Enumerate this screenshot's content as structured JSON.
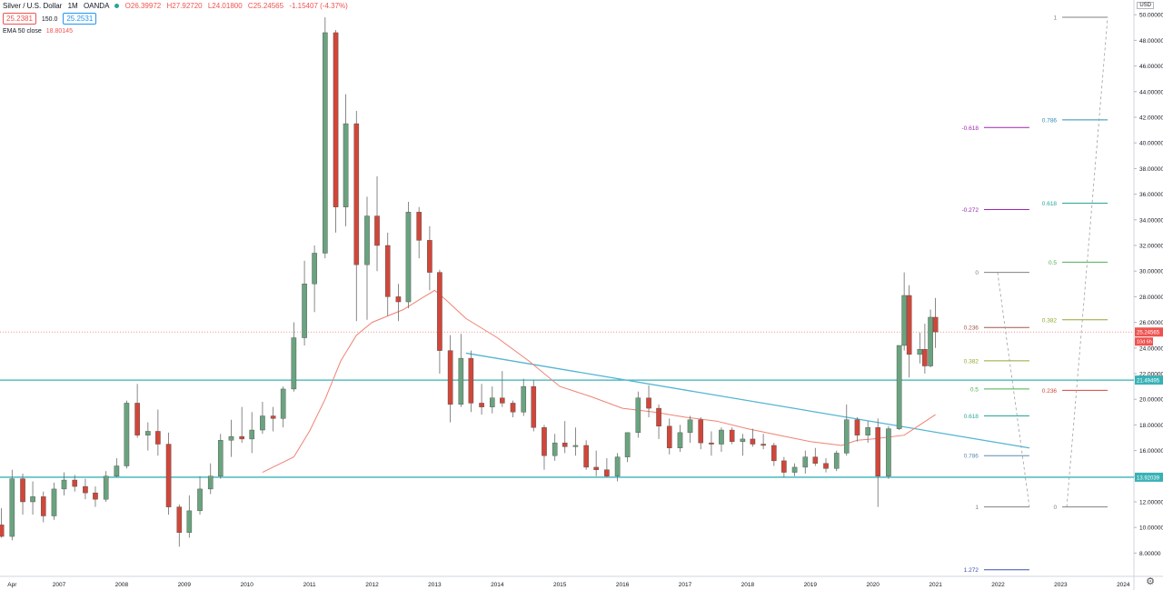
{
  "header": {
    "symbol": "Silver / U.S. Dollar",
    "interval": "1M",
    "source": "OANDA",
    "open": "O26.39972",
    "high": "H27.92720",
    "low": "L24.01800",
    "close": "C25.24565",
    "change": "-1.15407 (-4.37%)",
    "sell_price": "25.2381",
    "spread": "150.0",
    "buy_price": "25.2531",
    "indicator": "EMA 50 close",
    "indicator_value": "18.80145",
    "currency": "USD"
  },
  "colors": {
    "up": "#6aa37f",
    "down": "#d0473a",
    "ema": "#f08272",
    "hline": "#38b2b6",
    "trendline": "#54b4d2"
  },
  "chart_data": {
    "type": "candlestick",
    "title": "Silver / U.S. Dollar, 1M, OANDA",
    "ylim": [
      6.5,
      50.5
    ],
    "y_ticks": [
      "8.00000",
      "10.00000",
      "12.00000",
      "14.00000",
      "16.00000",
      "18.00000",
      "20.00000",
      "22.00000",
      "24.00000",
      "26.00000",
      "28.00000",
      "30.00000",
      "32.00000",
      "34.00000",
      "36.00000",
      "38.00000",
      "40.00000",
      "42.00000",
      "44.00000",
      "46.00000",
      "48.00000",
      "50.00000"
    ],
    "x_ticks": [
      "Apr",
      "2007",
      "2008",
      "2009",
      "2010",
      "2011",
      "2012",
      "2013",
      "2014",
      "2015",
      "2016",
      "2017",
      "2018",
      "2019",
      "2020",
      "2021",
      "2022",
      "2023",
      "2024"
    ],
    "x_tick_years": [
      2006.25,
      2007,
      2008,
      2009,
      2010,
      2011,
      2012,
      2013,
      2014,
      2015,
      2016,
      2017,
      2018,
      2019,
      2020,
      2021,
      2022,
      2023,
      2024
    ],
    "candles": [
      {
        "t": 2006.08,
        "o": 10.2,
        "h": 11.5,
        "l": 9.2,
        "c": 9.3
      },
      {
        "t": 2006.25,
        "o": 9.3,
        "h": 14.5,
        "l": 9.0,
        "c": 13.8
      },
      {
        "t": 2006.42,
        "o": 13.8,
        "h": 14.2,
        "l": 11.0,
        "c": 12.0
      },
      {
        "t": 2006.58,
        "o": 12.0,
        "h": 13.6,
        "l": 11.0,
        "c": 12.4
      },
      {
        "t": 2006.75,
        "o": 12.4,
        "h": 12.8,
        "l": 10.4,
        "c": 10.9
      },
      {
        "t": 2006.92,
        "o": 10.9,
        "h": 13.5,
        "l": 10.6,
        "c": 13.0
      },
      {
        "t": 2007.08,
        "o": 13.0,
        "h": 14.3,
        "l": 12.5,
        "c": 13.7
      },
      {
        "t": 2007.25,
        "o": 13.7,
        "h": 14.1,
        "l": 12.8,
        "c": 13.2
      },
      {
        "t": 2007.42,
        "o": 13.2,
        "h": 13.8,
        "l": 12.2,
        "c": 12.7
      },
      {
        "t": 2007.58,
        "o": 12.7,
        "h": 13.2,
        "l": 11.6,
        "c": 12.2
      },
      {
        "t": 2007.75,
        "o": 12.2,
        "h": 14.4,
        "l": 12.0,
        "c": 14.0
      },
      {
        "t": 2007.92,
        "o": 14.0,
        "h": 15.4,
        "l": 13.9,
        "c": 14.8
      },
      {
        "t": 2008.08,
        "o": 14.8,
        "h": 19.9,
        "l": 14.6,
        "c": 19.7
      },
      {
        "t": 2008.25,
        "o": 19.7,
        "h": 21.2,
        "l": 17.0,
        "c": 17.2
      },
      {
        "t": 2008.42,
        "o": 17.2,
        "h": 18.2,
        "l": 16.0,
        "c": 17.5
      },
      {
        "t": 2008.58,
        "o": 17.5,
        "h": 19.2,
        "l": 15.6,
        "c": 16.5
      },
      {
        "t": 2008.75,
        "o": 16.5,
        "h": 17.4,
        "l": 11.0,
        "c": 11.6
      },
      {
        "t": 2008.92,
        "o": 11.6,
        "h": 11.8,
        "l": 8.5,
        "c": 9.6
      },
      {
        "t": 2009.08,
        "o": 9.6,
        "h": 12.5,
        "l": 9.2,
        "c": 11.3
      },
      {
        "t": 2009.25,
        "o": 11.3,
        "h": 14.0,
        "l": 11.0,
        "c": 13.0
      },
      {
        "t": 2009.42,
        "o": 13.0,
        "h": 15.0,
        "l": 12.6,
        "c": 14.0
      },
      {
        "t": 2009.58,
        "o": 14.0,
        "h": 17.3,
        "l": 13.8,
        "c": 16.8
      },
      {
        "t": 2009.75,
        "o": 16.8,
        "h": 18.4,
        "l": 15.5,
        "c": 17.1
      },
      {
        "t": 2009.92,
        "o": 17.1,
        "h": 19.4,
        "l": 16.6,
        "c": 16.9
      },
      {
        "t": 2010.08,
        "o": 16.9,
        "h": 19.0,
        "l": 15.8,
        "c": 17.6
      },
      {
        "t": 2010.25,
        "o": 17.6,
        "h": 19.8,
        "l": 17.3,
        "c": 18.7
      },
      {
        "t": 2010.42,
        "o": 18.7,
        "h": 19.4,
        "l": 17.5,
        "c": 18.5
      },
      {
        "t": 2010.58,
        "o": 18.5,
        "h": 21.0,
        "l": 17.8,
        "c": 20.8
      },
      {
        "t": 2010.75,
        "o": 20.8,
        "h": 26.0,
        "l": 20.6,
        "c": 24.8
      },
      {
        "t": 2010.92,
        "o": 24.8,
        "h": 30.8,
        "l": 24.2,
        "c": 29.0
      },
      {
        "t": 2011.08,
        "o": 29.0,
        "h": 32.0,
        "l": 26.8,
        "c": 31.4
      },
      {
        "t": 2011.25,
        "o": 31.4,
        "h": 49.8,
        "l": 31.0,
        "c": 48.6
      },
      {
        "t": 2011.42,
        "o": 48.6,
        "h": 48.8,
        "l": 33.0,
        "c": 35.0
      },
      {
        "t": 2011.58,
        "o": 35.0,
        "h": 43.8,
        "l": 33.5,
        "c": 41.5
      },
      {
        "t": 2011.75,
        "o": 41.5,
        "h": 42.5,
        "l": 26.1,
        "c": 30.5
      },
      {
        "t": 2011.92,
        "o": 30.5,
        "h": 35.8,
        "l": 26.2,
        "c": 34.3
      },
      {
        "t": 2012.08,
        "o": 34.3,
        "h": 37.4,
        "l": 30.0,
        "c": 32.0
      },
      {
        "t": 2012.25,
        "o": 32.0,
        "h": 33.0,
        "l": 26.5,
        "c": 28.0
      },
      {
        "t": 2012.42,
        "o": 28.0,
        "h": 29.0,
        "l": 26.1,
        "c": 27.6
      },
      {
        "t": 2012.58,
        "o": 27.6,
        "h": 35.4,
        "l": 27.1,
        "c": 34.6
      },
      {
        "t": 2012.75,
        "o": 34.6,
        "h": 35.0,
        "l": 31.0,
        "c": 32.4
      },
      {
        "t": 2012.92,
        "o": 32.4,
        "h": 33.5,
        "l": 28.5,
        "c": 29.9
      },
      {
        "t": 2013.08,
        "o": 29.9,
        "h": 30.1,
        "l": 22.0,
        "c": 23.8
      },
      {
        "t": 2013.25,
        "o": 23.8,
        "h": 25.0,
        "l": 18.2,
        "c": 19.6
      },
      {
        "t": 2013.42,
        "o": 19.6,
        "h": 25.1,
        "l": 19.4,
        "c": 23.2
      },
      {
        "t": 2013.58,
        "o": 23.2,
        "h": 23.8,
        "l": 19.0,
        "c": 19.7
      },
      {
        "t": 2013.75,
        "o": 19.7,
        "h": 21.2,
        "l": 18.8,
        "c": 19.4
      },
      {
        "t": 2013.92,
        "o": 19.4,
        "h": 21.0,
        "l": 18.9,
        "c": 20.1
      },
      {
        "t": 2014.08,
        "o": 20.1,
        "h": 22.2,
        "l": 19.4,
        "c": 19.7
      },
      {
        "t": 2014.25,
        "o": 19.7,
        "h": 19.9,
        "l": 18.6,
        "c": 19.0
      },
      {
        "t": 2014.42,
        "o": 19.0,
        "h": 21.6,
        "l": 18.7,
        "c": 21.0
      },
      {
        "t": 2014.58,
        "o": 21.0,
        "h": 21.5,
        "l": 17.5,
        "c": 17.8
      },
      {
        "t": 2014.75,
        "o": 17.8,
        "h": 18.0,
        "l": 14.5,
        "c": 15.6
      },
      {
        "t": 2014.92,
        "o": 15.6,
        "h": 17.3,
        "l": 15.2,
        "c": 16.6
      },
      {
        "t": 2015.08,
        "o": 16.6,
        "h": 18.3,
        "l": 15.8,
        "c": 16.3
      },
      {
        "t": 2015.25,
        "o": 16.3,
        "h": 17.8,
        "l": 15.6,
        "c": 16.4
      },
      {
        "t": 2015.42,
        "o": 16.4,
        "h": 16.8,
        "l": 14.5,
        "c": 14.7
      },
      {
        "t": 2015.58,
        "o": 14.7,
        "h": 16.0,
        "l": 14.0,
        "c": 14.5
      },
      {
        "t": 2015.75,
        "o": 14.5,
        "h": 15.4,
        "l": 13.9,
        "c": 14.0
      },
      {
        "t": 2015.92,
        "o": 14.0,
        "h": 15.8,
        "l": 13.6,
        "c": 15.5
      },
      {
        "t": 2016.08,
        "o": 15.5,
        "h": 17.4,
        "l": 15.1,
        "c": 17.4
      },
      {
        "t": 2016.25,
        "o": 17.4,
        "h": 20.6,
        "l": 17.0,
        "c": 20.1
      },
      {
        "t": 2016.42,
        "o": 20.1,
        "h": 21.1,
        "l": 18.6,
        "c": 19.3
      },
      {
        "t": 2016.58,
        "o": 19.3,
        "h": 19.6,
        "l": 16.9,
        "c": 17.9
      },
      {
        "t": 2016.75,
        "o": 17.9,
        "h": 18.5,
        "l": 15.7,
        "c": 16.2
      },
      {
        "t": 2016.92,
        "o": 16.2,
        "h": 18.0,
        "l": 15.9,
        "c": 17.4
      },
      {
        "t": 2017.08,
        "o": 17.4,
        "h": 18.7,
        "l": 16.6,
        "c": 18.4
      },
      {
        "t": 2017.25,
        "o": 18.4,
        "h": 18.6,
        "l": 16.1,
        "c": 16.6
      },
      {
        "t": 2017.42,
        "o": 16.6,
        "h": 17.5,
        "l": 15.6,
        "c": 16.5
      },
      {
        "t": 2017.58,
        "o": 16.5,
        "h": 17.8,
        "l": 15.9,
        "c": 17.6
      },
      {
        "t": 2017.75,
        "o": 17.6,
        "h": 17.8,
        "l": 16.5,
        "c": 16.7
      },
      {
        "t": 2017.92,
        "o": 16.7,
        "h": 17.3,
        "l": 15.6,
        "c": 16.9
      },
      {
        "t": 2018.08,
        "o": 16.9,
        "h": 17.7,
        "l": 16.3,
        "c": 16.5
      },
      {
        "t": 2018.25,
        "o": 16.5,
        "h": 17.3,
        "l": 16.1,
        "c": 16.4
      },
      {
        "t": 2018.42,
        "o": 16.4,
        "h": 16.6,
        "l": 14.8,
        "c": 15.2
      },
      {
        "t": 2018.58,
        "o": 15.2,
        "h": 15.5,
        "l": 13.9,
        "c": 14.3
      },
      {
        "t": 2018.75,
        "o": 14.3,
        "h": 15.0,
        "l": 14.0,
        "c": 14.7
      },
      {
        "t": 2018.92,
        "o": 14.7,
        "h": 16.0,
        "l": 14.2,
        "c": 15.5
      },
      {
        "t": 2019.08,
        "o": 15.5,
        "h": 16.2,
        "l": 14.8,
        "c": 15.0
      },
      {
        "t": 2019.25,
        "o": 15.0,
        "h": 15.4,
        "l": 14.3,
        "c": 14.6
      },
      {
        "t": 2019.42,
        "o": 14.6,
        "h": 16.0,
        "l": 14.4,
        "c": 15.8
      },
      {
        "t": 2019.58,
        "o": 15.8,
        "h": 19.6,
        "l": 15.6,
        "c": 18.4
      },
      {
        "t": 2019.75,
        "o": 18.4,
        "h": 18.6,
        "l": 16.7,
        "c": 17.2
      },
      {
        "t": 2019.92,
        "o": 17.2,
        "h": 18.3,
        "l": 16.6,
        "c": 17.8
      },
      {
        "t": 2020.08,
        "o": 17.8,
        "h": 18.5,
        "l": 11.6,
        "c": 14.0
      },
      {
        "t": 2020.25,
        "o": 14.0,
        "h": 17.9,
        "l": 13.8,
        "c": 17.7
      },
      {
        "t": 2020.42,
        "o": 17.7,
        "h": 24.0,
        "l": 17.6,
        "c": 24.2
      },
      {
        "t": 2020.5,
        "o": 24.2,
        "h": 29.9,
        "l": 23.8,
        "c": 28.1
      },
      {
        "t": 2020.58,
        "o": 28.1,
        "h": 28.9,
        "l": 21.7,
        "c": 23.5
      },
      {
        "t": 2020.75,
        "o": 23.5,
        "h": 25.2,
        "l": 22.8,
        "c": 23.9
      },
      {
        "t": 2020.83,
        "o": 23.9,
        "h": 25.9,
        "l": 22.0,
        "c": 22.6
      },
      {
        "t": 2020.92,
        "o": 22.6,
        "h": 27.0,
        "l": 22.5,
        "c": 26.4
      },
      {
        "t": 2021.0,
        "o": 26.4,
        "h": 27.9,
        "l": 24.0,
        "c": 25.25
      }
    ],
    "ema": [
      [
        2010.25,
        14.3
      ],
      [
        2010.75,
        15.5
      ],
      [
        2011.0,
        17.5
      ],
      [
        2011.25,
        20.0
      ],
      [
        2011.5,
        23.0
      ],
      [
        2011.75,
        25.0
      ],
      [
        2012.0,
        26.0
      ],
      [
        2012.5,
        27.0
      ],
      [
        2012.83,
        28.0
      ],
      [
        2013.0,
        28.5
      ],
      [
        2013.17,
        27.8
      ],
      [
        2013.5,
        26.3
      ],
      [
        2014.0,
        24.8
      ],
      [
        2014.5,
        23.0
      ],
      [
        2015.0,
        21.0
      ],
      [
        2015.5,
        20.2
      ],
      [
        2016.0,
        19.3
      ],
      [
        2016.5,
        19.0
      ],
      [
        2017.0,
        18.6
      ],
      [
        2017.5,
        18.3
      ],
      [
        2018.0,
        17.7
      ],
      [
        2018.5,
        17.2
      ],
      [
        2019.0,
        16.7
      ],
      [
        2019.5,
        16.4
      ],
      [
        2019.75,
        16.8
      ],
      [
        2020.0,
        16.9
      ],
      [
        2020.5,
        17.2
      ],
      [
        2021.0,
        18.8
      ]
    ],
    "horizontal_lines": [
      {
        "price": 21.49495,
        "label": "21.49495"
      },
      {
        "price": 13.92039,
        "label": "13.92039"
      }
    ],
    "trendline": [
      [
        2013.5,
        23.6
      ],
      [
        2022.5,
        16.2
      ]
    ],
    "current_price": {
      "value": 25.24565,
      "label": "25.24565",
      "countdown": "10d 6h"
    },
    "fib_left": {
      "x": 2022.5,
      "levels": [
        {
          "label": "-0.618",
          "price": 41.2,
          "color": "#9c27b0"
        },
        {
          "label": "-0.272",
          "price": 34.8,
          "color": "#9c27b0"
        },
        {
          "label": "0",
          "price": 29.9,
          "color": "#808080"
        },
        {
          "label": "0.236",
          "price": 25.6,
          "color": "#a05a4a"
        },
        {
          "label": "0.382",
          "price": 23.0,
          "color": "#8fa832"
        },
        {
          "label": "0.5",
          "price": 20.8,
          "color": "#4caf50"
        },
        {
          "label": "0.618",
          "price": 18.7,
          "color": "#26a69a"
        },
        {
          "label": "0.786",
          "price": 15.6,
          "color": "#5b8ab2"
        },
        {
          "label": "1",
          "price": 11.6,
          "color": "#808080"
        },
        {
          "label": "1.272",
          "price": 6.7,
          "color": "#3f51b5"
        }
      ]
    },
    "fib_right": {
      "x": 2023.75,
      "levels": [
        {
          "label": "1",
          "price": 49.8,
          "color": "#808080"
        },
        {
          "label": "0.786",
          "price": 41.8,
          "color": "#2f8fb5"
        },
        {
          "label": "0.618",
          "price": 35.3,
          "color": "#26a69a"
        },
        {
          "label": "0.5",
          "price": 30.7,
          "color": "#4caf50"
        },
        {
          "label": "0.382",
          "price": 26.2,
          "color": "#8fa832"
        },
        {
          "label": "0.236",
          "price": 20.7,
          "color": "#d0473a"
        },
        {
          "label": "0",
          "price": 11.6,
          "color": "#808080"
        }
      ]
    }
  }
}
